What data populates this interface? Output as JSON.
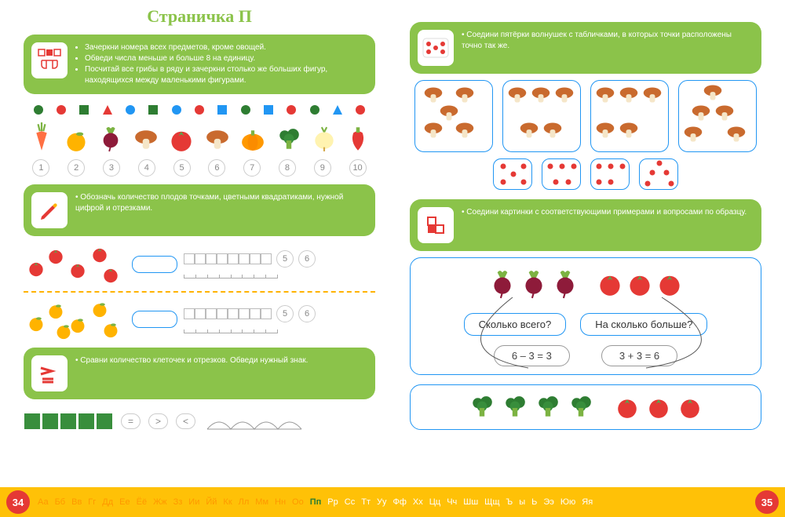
{
  "title": "Страничка П",
  "colors": {
    "green": "#8bc34a",
    "blue": "#2196f3",
    "orange": "#ff9800",
    "red": "#e53935",
    "yellow": "#ffc107",
    "darkgreen": "#2e7d32"
  },
  "task1": {
    "lines": [
      "Зачеркни номера всех предметов, кроме овощей.",
      "Обведи числа меньше и больше 8 на единицу.",
      "Посчитай все грибы в ряду и зачеркни столько же больших фигур, находящихся между маленькими фигурами."
    ],
    "shapes": [
      {
        "t": "ci",
        "c": "#2e7d32"
      },
      {
        "t": "ci",
        "c": "#e53935"
      },
      {
        "t": "sq",
        "c": "#2e7d32"
      },
      {
        "t": "tr",
        "c": "#e53935"
      },
      {
        "t": "ci",
        "c": "#2196f3"
      },
      {
        "t": "sq",
        "c": "#2e7d32"
      },
      {
        "t": "ci",
        "c": "#2196f3"
      },
      {
        "t": "ci",
        "c": "#e53935"
      },
      {
        "t": "sq",
        "c": "#2196f3"
      },
      {
        "t": "ci",
        "c": "#2e7d32"
      },
      {
        "t": "sq",
        "c": "#2196f3"
      },
      {
        "t": "ci",
        "c": "#e53935"
      },
      {
        "t": "ci",
        "c": "#2e7d32"
      },
      {
        "t": "tr",
        "c": "#2196f3"
      },
      {
        "t": "ci",
        "c": "#e53935"
      }
    ],
    "numbers": [
      1,
      2,
      3,
      4,
      5,
      6,
      7,
      8,
      9,
      10
    ]
  },
  "task2": {
    "text": "Обозначь количество плодов точками, цветными квадратиками, нужной цифрой и отрезками.",
    "rows": [
      {
        "fruit": "tomato",
        "count": 5,
        "pills": [
          "5",
          "6"
        ]
      },
      {
        "fruit": "apricot",
        "count": 6,
        "pills": [
          "5",
          "6"
        ]
      }
    ]
  },
  "task3": {
    "text": "Сравни количество клеточек и отрезков. Обведи нужный знак.",
    "signs": [
      "=",
      ">",
      "<"
    ],
    "cells": 5
  },
  "task4": {
    "text": "Соедини пятёрки волнушек с табличками, в которых точки расположены точно так же.",
    "cards": 4,
    "mushrooms_per_card": 5,
    "dice": 4
  },
  "task5": {
    "text": "Соедини картинки с соответствующими примерами и вопросами по образцу.",
    "q1": "Сколько всего?",
    "q2": "На сколько больше?",
    "eq1": "6 – 3 = 3",
    "eq2": "3 + 3 = 6",
    "group_left_count": 3,
    "group_right_count": 3,
    "panel2_left_count": 4,
    "panel2_right_count": 3
  },
  "footer": {
    "left_num": "34",
    "right_num": "35",
    "letters_left": [
      "Аа",
      "Бб",
      "Вв",
      "Гг",
      "Дд",
      "Ее",
      "Ёё",
      "Жж",
      "Зз",
      "Ии",
      "Йй",
      "Кк",
      "Лл",
      "Мм",
      "Нн",
      "Оо"
    ],
    "active": "Пп",
    "letters_right": [
      "Рр",
      "Сс",
      "Тт",
      "Уу",
      "Фф",
      "Хх",
      "Цц",
      "Чч",
      "Шш",
      "Щщ",
      "Ъ",
      "ы",
      "Ь",
      "Ээ",
      "Юю",
      "Яя"
    ]
  }
}
